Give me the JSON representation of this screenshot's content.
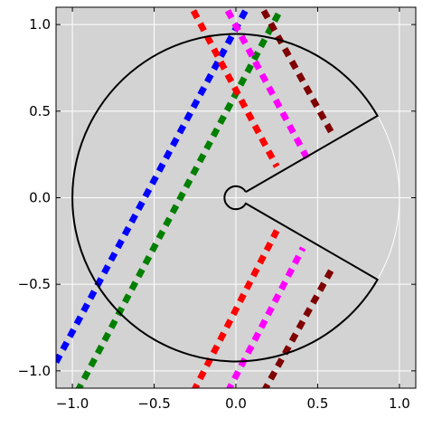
{
  "chart_data": {
    "type": "line",
    "title": "",
    "xlabel": "",
    "ylabel": "",
    "xlim": [
      -1.1,
      1.1
    ],
    "ylim": [
      -1.1,
      1.1
    ],
    "grid": true,
    "aspect": "equal",
    "x_ticks": [
      -1.0,
      -0.5,
      0.0,
      0.5,
      1.0
    ],
    "x_tick_labels": [
      "−1.0",
      "−0.5",
      "0.0",
      "0.5",
      "1.0"
    ],
    "y_ticks": [
      1.0,
      0.5,
      0.0,
      -0.5,
      -1.0
    ],
    "y_tick_labels": [
      "1.0",
      "0.5",
      "0.0",
      "−0.5",
      "−1.0"
    ],
    "colors": {
      "plot_background": "#d3d3d3",
      "grid": "#ffffff",
      "outline": "#000000"
    },
    "reference_circle": {
      "cx": 0,
      "cy": 0,
      "r": 1.0,
      "color": "#ffffff"
    },
    "pacman": {
      "color": "#000000",
      "outer_radius": 1.0,
      "inner_radius": 0.07,
      "mouth_start_deg": -30,
      "mouth_end_deg": 30
    },
    "series": [
      {
        "color": "#0000ff",
        "segments": [
          {
            "x": [
              -1.1,
              0.07
            ],
            "y": [
              -0.95,
              1.1
            ]
          }
        ]
      },
      {
        "color": "#007f00",
        "segments": [
          {
            "x": [
              -0.97,
              0.27
            ],
            "y": [
              -1.12,
              1.08
            ]
          }
        ]
      },
      {
        "color": "#ff0000",
        "segments": [
          {
            "x": [
              -0.26,
              0.25
            ],
            "y": [
              1.08,
              0.18
            ]
          },
          {
            "x": [
              -0.26,
              0.25
            ],
            "y": [
              -1.12,
              -0.19
            ]
          }
        ]
      },
      {
        "color": "#ff00ff",
        "segments": [
          {
            "x": [
              -0.05,
              0.44
            ],
            "y": [
              1.08,
              0.22
            ]
          },
          {
            "x": [
              -0.05,
              0.41
            ],
            "y": [
              -1.12,
              -0.29
            ]
          }
        ]
      },
      {
        "color": "#7f0000",
        "segments": [
          {
            "x": [
              0.17,
              0.6
            ],
            "y": [
              1.08,
              0.35
            ]
          },
          {
            "x": [
              0.17,
              0.6
            ],
            "y": [
              -1.12,
              -0.39
            ]
          }
        ]
      }
    ]
  }
}
